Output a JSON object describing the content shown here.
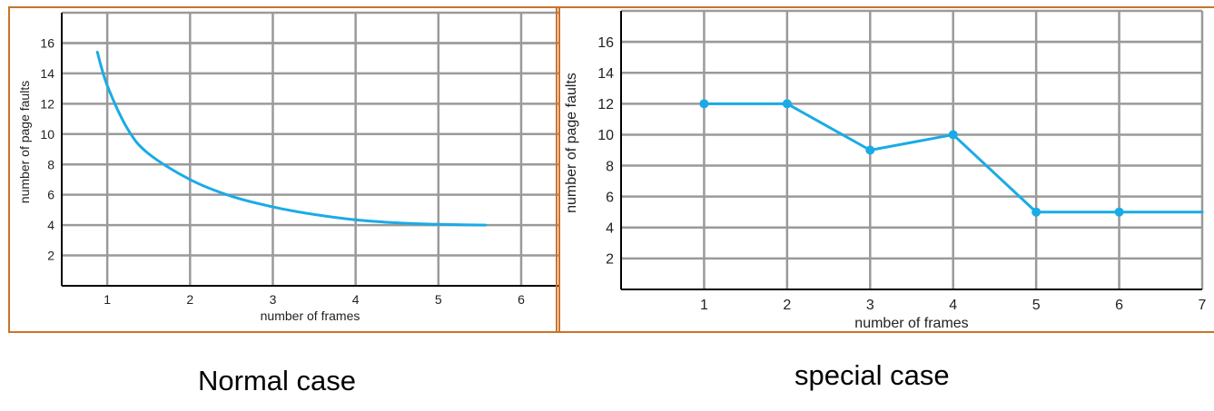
{
  "chart_data": [
    {
      "type": "line",
      "xlabel": "number of frames",
      "ylabel": "number of page faults",
      "x_ticks": [
        "1",
        "2",
        "3",
        "4",
        "5",
        "6"
      ],
      "y_ticks": [
        "2",
        "4",
        "6",
        "8",
        "10",
        "12",
        "14",
        "16"
      ],
      "xlim": [
        0.45,
        6.45
      ],
      "ylim": [
        0,
        18
      ],
      "grid": true,
      "color": "#1aabe6",
      "smooth": true,
      "markers": false,
      "x": [
        0.88,
        1.0,
        1.25,
        1.5,
        2.0,
        2.5,
        3.0,
        3.5,
        4.0,
        4.5,
        5.0,
        5.57
      ],
      "y": [
        15.4,
        13.2,
        10.3,
        8.7,
        7.0,
        5.9,
        5.2,
        4.7,
        4.35,
        4.15,
        4.05,
        4.0
      ],
      "caption": "Normal  case"
    },
    {
      "type": "line",
      "xlabel": "number of frames",
      "ylabel": "number of page faults",
      "x_ticks": [
        "1",
        "2",
        "3",
        "4",
        "5",
        "6",
        "7"
      ],
      "y_ticks": [
        "2",
        "4",
        "6",
        "8",
        "10",
        "12",
        "14",
        "16"
      ],
      "xlim": [
        0,
        7
      ],
      "ylim": [
        0,
        18
      ],
      "grid": true,
      "color": "#1aabe6",
      "smooth": false,
      "markers": true,
      "marker_points": 6,
      "x": [
        1,
        2,
        3,
        4,
        5,
        6,
        7
      ],
      "y": [
        12,
        12,
        9,
        10,
        5,
        5,
        5
      ],
      "caption": "special  case"
    }
  ]
}
